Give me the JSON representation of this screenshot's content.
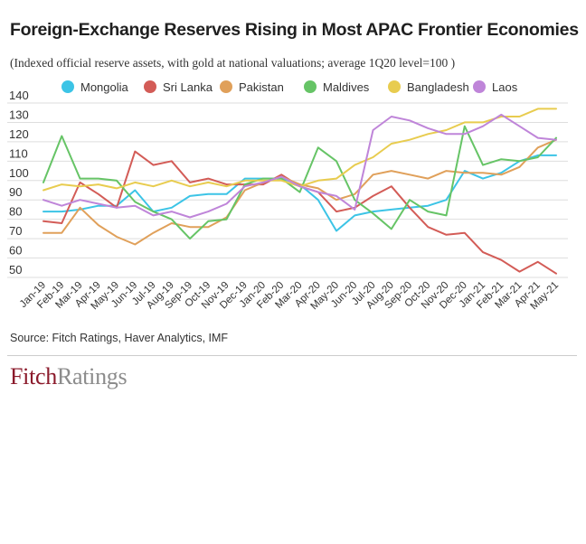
{
  "title": "Foreign-Exchange Reserves Rising in Most APAC Frontier Economies",
  "subtitle": "(Indexed official reserve assets, with gold at national valuations; average 1Q20 level=100 )",
  "source": "Source: Fitch Ratings, Haver Analytics, IMF",
  "logo": {
    "part1": "Fitch",
    "part2": "Ratings"
  },
  "chart_data": {
    "type": "line",
    "x": [
      "Jan-19",
      "Feb-19",
      "Mar-19",
      "Apr-19",
      "May-19",
      "Jun-19",
      "Jul-19",
      "Aug-19",
      "Sep-19",
      "Oct-19",
      "Nov-19",
      "Dec-19",
      "Jan-20",
      "Feb-20",
      "Mar-20",
      "Apr-20",
      "May-20",
      "Jun-20",
      "Jul-20",
      "Aug-20",
      "Sep-20",
      "Oct-20",
      "Nov-20",
      "Dec-20",
      "Jan-21",
      "Feb-21",
      "Mar-21",
      "Apr-21",
      "May-21"
    ],
    "ylim": [
      50,
      140
    ],
    "yticks": [
      50,
      60,
      70,
      80,
      90,
      100,
      110,
      120,
      130,
      140
    ],
    "grid": true,
    "legend_position": "top",
    "series": [
      {
        "name": "Mongolia",
        "color": "#3cc4e6",
        "values": [
          84,
          84,
          85,
          87,
          87,
          95,
          84,
          86,
          92,
          93,
          93,
          101,
          101,
          101,
          98,
          90,
          74,
          82,
          84,
          85,
          86,
          87,
          90,
          105,
          101,
          104,
          110,
          113,
          113
        ]
      },
      {
        "name": "Sri Lanka",
        "color": "#d35c57",
        "values": [
          79,
          78,
          99,
          93,
          86,
          115,
          108,
          110,
          99,
          101,
          98,
          98,
          98,
          103,
          97,
          94,
          84,
          86,
          92,
          97,
          86,
          76,
          72,
          73,
          63,
          59,
          53,
          58,
          52
        ]
      },
      {
        "name": "Pakistan",
        "color": "#e0a05a",
        "values": [
          73,
          73,
          86,
          77,
          71,
          67,
          73,
          78,
          76,
          76,
          81,
          95,
          99,
          102,
          98,
          96,
          90,
          93,
          103,
          105,
          103,
          101,
          105,
          104,
          104,
          103,
          107,
          117,
          121
        ]
      },
      {
        "name": "Maldives",
        "color": "#66c466",
        "values": [
          99,
          123,
          101,
          101,
          100,
          89,
          84,
          80,
          70,
          79,
          80,
          98,
          101,
          101,
          94,
          117,
          110,
          90,
          83,
          75,
          90,
          84,
          82,
          128,
          108,
          111,
          110,
          112,
          122
        ]
      },
      {
        "name": "Bangladesh",
        "color": "#e8cc4f",
        "values": [
          95,
          98,
          97,
          98,
          96,
          99,
          97,
          100,
          97,
          99,
          97,
          100,
          100,
          100,
          97,
          100,
          101,
          108,
          112,
          119,
          121,
          124,
          126,
          130,
          130,
          133,
          133,
          137,
          137
        ]
      },
      {
        "name": "Laos",
        "color": "#bf85d9",
        "values": [
          90,
          87,
          90,
          88,
          86,
          87,
          82,
          84,
          81,
          84,
          88,
          97,
          99,
          102,
          97,
          94,
          92,
          85,
          126,
          133,
          131,
          127,
          124,
          124,
          128,
          134,
          128,
          122,
          121
        ]
      }
    ],
    "xlabel": "",
    "ylabel": ""
  }
}
